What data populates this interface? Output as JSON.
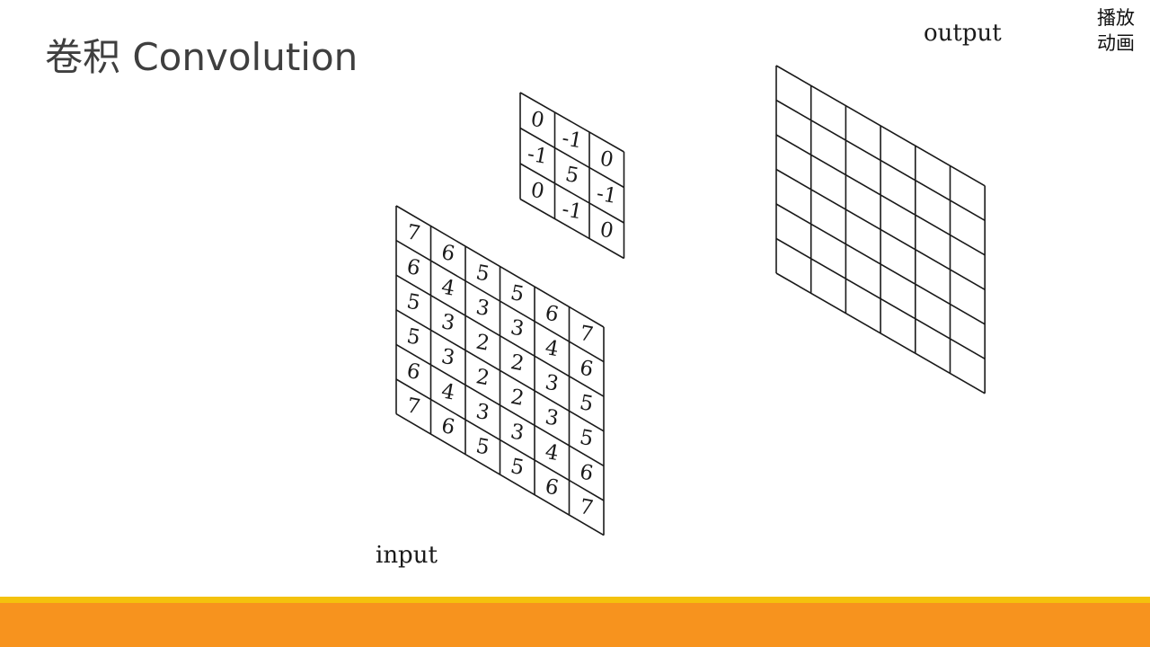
{
  "title": "卷积 Convolution",
  "play_button": {
    "line1": "播放",
    "line2": "动画"
  },
  "labels": {
    "input": "input",
    "output": "output"
  },
  "input_matrix": [
    [
      7,
      6,
      5,
      5,
      6,
      7
    ],
    [
      6,
      4,
      3,
      3,
      4,
      6
    ],
    [
      5,
      3,
      2,
      2,
      3,
      5
    ],
    [
      5,
      3,
      2,
      2,
      3,
      5
    ],
    [
      6,
      4,
      3,
      3,
      4,
      6
    ],
    [
      7,
      6,
      5,
      5,
      6,
      7
    ]
  ],
  "kernel": [
    [
      0,
      -1,
      0
    ],
    [
      -1,
      5,
      -1
    ],
    [
      0,
      -1,
      0
    ]
  ],
  "output_grid": {
    "rows": 6,
    "cols": 6
  },
  "colors": {
    "stroke": "#1a1a1a",
    "accent_yellow": "#f4c20d",
    "accent_orange": "#f7931e"
  }
}
